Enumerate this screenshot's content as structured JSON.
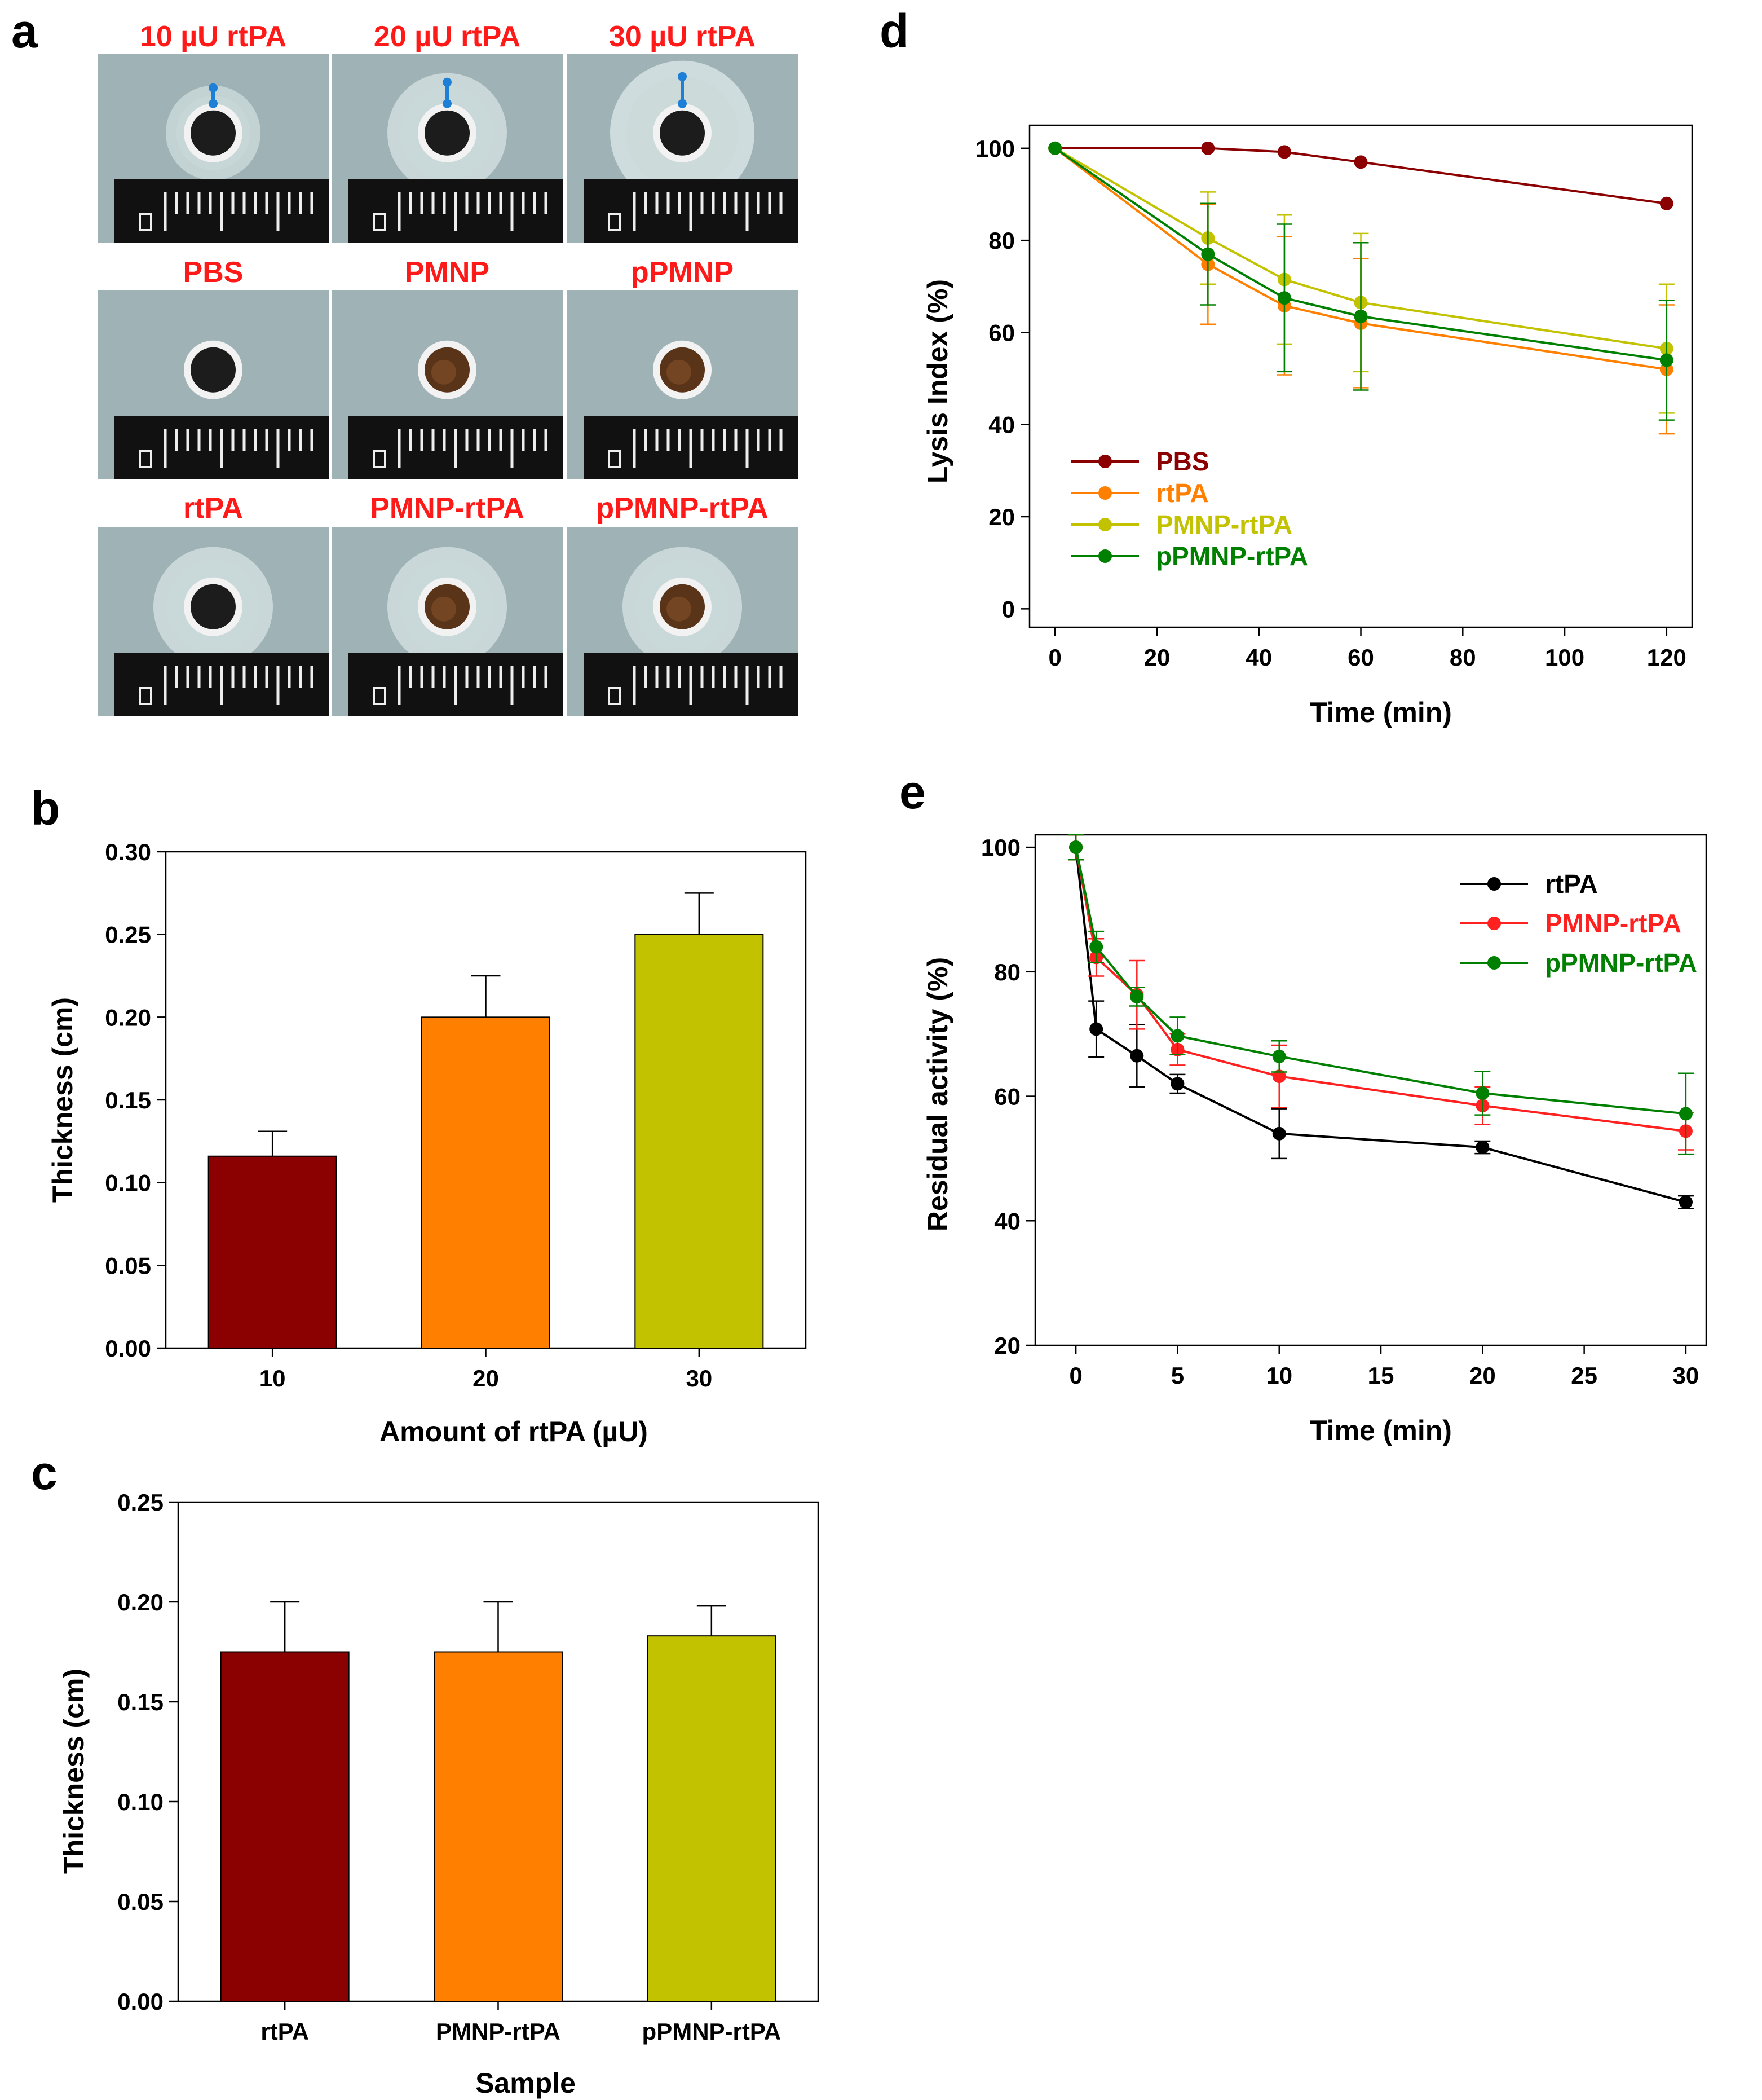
{
  "panel_letters": {
    "a": "a",
    "b": "b",
    "c": "c",
    "d": "d",
    "e": "e"
  },
  "colors": {
    "dark_red": "#8B0000",
    "orange": "#FF8000",
    "olive": "#C2C200",
    "green": "#008000",
    "black": "#000000",
    "red": "#FF2020",
    "label_red": "#FF1A1A",
    "ruler_black": "#111111",
    "agar": "#9FB3B6",
    "marker_blue": "#1E7FD6"
  },
  "photo_panel": {
    "rows": [
      {
        "cells": [
          {
            "label": "10 µU rtPA",
            "clot": "black",
            "halo": 1,
            "marker": true
          },
          {
            "label": "20 µU rtPA",
            "clot": "black",
            "halo": 2,
            "marker": true
          },
          {
            "label": "30 µU rtPA",
            "clot": "black",
            "halo": 3,
            "marker": true
          }
        ]
      },
      {
        "cells": [
          {
            "label": "PBS",
            "clot": "black",
            "halo": 0,
            "marker": false
          },
          {
            "label": "PMNP",
            "clot": "brown",
            "halo": 0,
            "marker": false
          },
          {
            "label": "pPMNP",
            "clot": "brown",
            "halo": 0,
            "marker": false
          }
        ]
      },
      {
        "cells": [
          {
            "label": "rtPA",
            "clot": "black",
            "halo": 2,
            "marker": false
          },
          {
            "label": "PMNP-rtPA",
            "clot": "brown",
            "halo": 2,
            "marker": false
          },
          {
            "label": "pPMNP-rtPA",
            "clot": "brown",
            "halo": 2,
            "marker": false
          }
        ]
      }
    ]
  },
  "chart_data": [
    {
      "id": "b",
      "type": "bar",
      "categories": [
        "10",
        "20",
        "30"
      ],
      "values": [
        0.116,
        0.2,
        0.25
      ],
      "errors": [
        0.015,
        0.025,
        0.025
      ],
      "bar_colors": [
        "#8B0000",
        "#FF8000",
        "#C2C200"
      ],
      "title": "",
      "xlabel": "Amount of rtPA (µU)",
      "ylabel": "Thickness (cm)",
      "ylim": [
        0,
        0.3
      ],
      "yticks": [
        "0.00",
        "0.05",
        "0.10",
        "0.15",
        "0.20",
        "0.25",
        "0.30"
      ]
    },
    {
      "id": "c",
      "type": "bar",
      "categories": [
        "rtPA",
        "PMNP-rtPA",
        "pPMNP-rtPA"
      ],
      "values": [
        0.175,
        0.175,
        0.183
      ],
      "errors": [
        0.025,
        0.025,
        0.015
      ],
      "bar_colors": [
        "#8B0000",
        "#FF8000",
        "#C2C200"
      ],
      "title": "",
      "xlabel": "Sample",
      "ylabel": "Thickness (cm)",
      "ylim": [
        0,
        0.25
      ],
      "yticks": [
        "0.00",
        "0.05",
        "0.10",
        "0.15",
        "0.20",
        "0.25"
      ]
    },
    {
      "id": "d",
      "type": "line",
      "xlabel": "Time (min)",
      "ylabel": "Lysis Index (%)",
      "xlim": [
        -5,
        125
      ],
      "ylim": [
        -4,
        105
      ],
      "xticks": [
        "0",
        "20",
        "40",
        "60",
        "80",
        "100",
        "120"
      ],
      "yticks": [
        "0",
        "20",
        "40",
        "60",
        "80",
        "100"
      ],
      "legend_position": "bottom-left",
      "series": [
        {
          "name": "PBS",
          "color": "#8B0000",
          "x": [
            0,
            30,
            45,
            60,
            120
          ],
          "y": [
            100,
            100,
            99.2,
            97,
            88
          ],
          "err": [
            0,
            0,
            0,
            0,
            0
          ]
        },
        {
          "name": "rtPA",
          "color": "#FF8000",
          "x": [
            0,
            30,
            45,
            60,
            120
          ],
          "y": [
            100,
            74.8,
            65.8,
            62,
            52
          ],
          "err": [
            0,
            13,
            15,
            14,
            14
          ]
        },
        {
          "name": "PMNP-rtPA",
          "color": "#C2C200",
          "x": [
            0,
            30,
            45,
            60,
            120
          ],
          "y": [
            100,
            80.5,
            71.5,
            66.5,
            56.5
          ],
          "err": [
            0,
            10,
            14,
            15,
            14
          ]
        },
        {
          "name": "pPMNP-rtPA",
          "color": "#008000",
          "x": [
            0,
            30,
            45,
            60,
            120
          ],
          "y": [
            100,
            77,
            67.5,
            63.5,
            54
          ],
          "err": [
            0,
            11,
            16,
            16,
            13
          ]
        }
      ]
    },
    {
      "id": "e",
      "type": "line",
      "xlabel": "Time (min)",
      "ylabel": "Residual activity (%)",
      "xlim": [
        -2,
        31
      ],
      "ylim": [
        20,
        102
      ],
      "xticks": [
        "0",
        "5",
        "10",
        "15",
        "20",
        "25",
        "30"
      ],
      "yticks": [
        "20",
        "40",
        "60",
        "80",
        "100"
      ],
      "legend_position": "top-right",
      "series": [
        {
          "name": "rtPA",
          "color": "#000000",
          "x": [
            0,
            1,
            3,
            5,
            10,
            20,
            30
          ],
          "y": [
            100,
            70.8,
            66.5,
            62,
            54,
            51.8,
            43
          ],
          "err": [
            2,
            4.5,
            5,
            1.5,
            4,
            1,
            1
          ]
        },
        {
          "name": "PMNP-rtPA",
          "color": "#FF2020",
          "x": [
            0,
            1,
            3,
            5,
            10,
            20,
            30
          ],
          "y": [
            100,
            82.3,
            76.3,
            67.5,
            63.2,
            58.5,
            54.4
          ],
          "err": [
            2,
            3,
            5.5,
            2.5,
            5,
            3,
            3
          ]
        },
        {
          "name": "pPMNP-rtPA",
          "color": "#008000",
          "x": [
            0,
            1,
            3,
            5,
            10,
            20,
            30
          ],
          "y": [
            100,
            84,
            76,
            69.7,
            66.4,
            60.5,
            57.2
          ],
          "err": [
            2,
            2.5,
            1.5,
            3,
            2.5,
            3.5,
            6.5
          ]
        }
      ]
    }
  ]
}
